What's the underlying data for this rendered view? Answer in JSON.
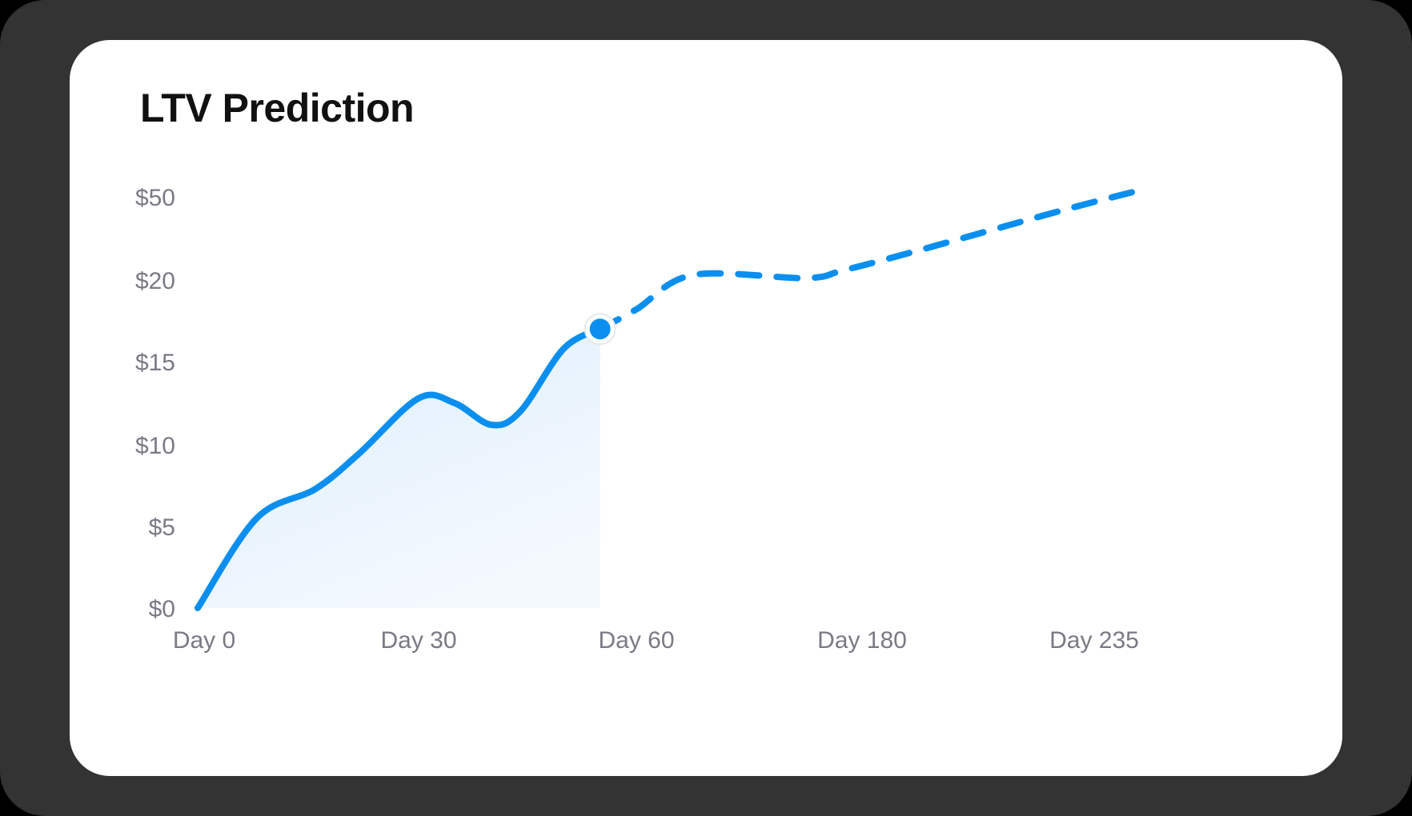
{
  "card": {
    "title": "LTV Prediction"
  },
  "chart_data": {
    "type": "line",
    "title": "LTV Prediction",
    "xlabel": "",
    "ylabel": "",
    "y_ticks": [
      "$0",
      "$5",
      "$10",
      "$15",
      "$20",
      "$50"
    ],
    "x_ticks": [
      "Day 0",
      "Day 30",
      "Day 60",
      "Day 180",
      "Day 235"
    ],
    "grid": false,
    "legend": "none",
    "series": [
      {
        "style": "solid-with-area",
        "points": [
          {
            "x": 0,
            "y": 0
          },
          {
            "x": 8,
            "y": 5.5
          },
          {
            "x": 16,
            "y": 7.3
          },
          {
            "x": 22,
            "y": 9.5
          },
          {
            "x": 30,
            "y": 12.8
          },
          {
            "x": 35,
            "y": 12.5
          },
          {
            "x": 40,
            "y": 11.2
          },
          {
            "x": 44,
            "y": 12.0
          },
          {
            "x": 50,
            "y": 15.8
          },
          {
            "x": 55,
            "y": 17.0
          }
        ]
      },
      {
        "style": "dashed",
        "points": [
          {
            "x": 55,
            "y": 17.0
          },
          {
            "x": 60,
            "y": 18.2
          },
          {
            "x": 90,
            "y": 21.8
          },
          {
            "x": 150,
            "y": 20.7
          },
          {
            "x": 170,
            "y": 23.5
          },
          {
            "x": 190,
            "y": 30
          },
          {
            "x": 220,
            "y": 45
          },
          {
            "x": 235,
            "y": 52
          }
        ]
      }
    ],
    "marker": {
      "x": 55,
      "y": 17.0
    },
    "colors": {
      "line": "#0a8ff0",
      "area": "#e3f1fd"
    }
  }
}
